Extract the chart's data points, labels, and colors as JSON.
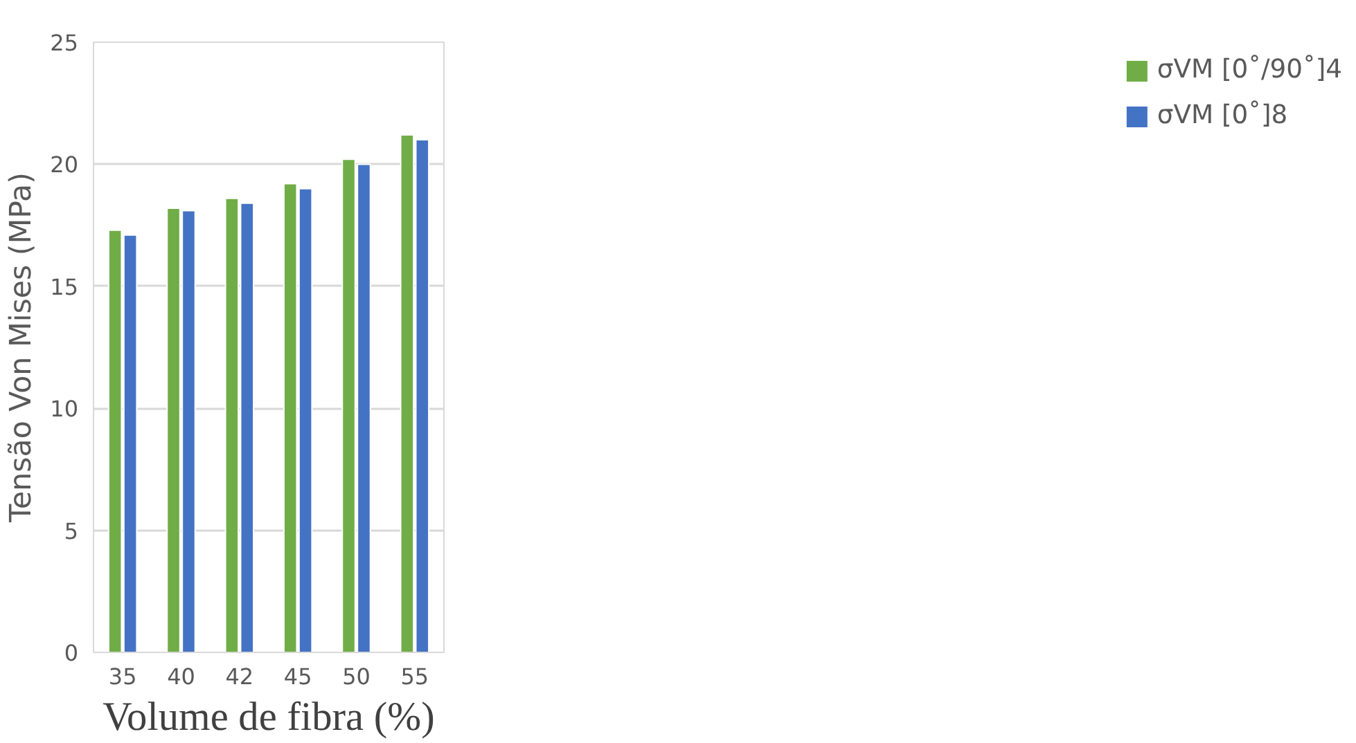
{
  "chart_data": {
    "type": "bar",
    "xlabel": "Volume de fibra (%)",
    "ylabel": "Tensão Von Mises (MPa)",
    "categories": [
      "35",
      "40",
      "42",
      "45",
      "50",
      "55"
    ],
    "series": [
      {
        "name": "σVM [0˚/90˚]4",
        "color": "#70ad47",
        "values": [
          17.3,
          18.2,
          18.6,
          19.2,
          20.2,
          21.2
        ]
      },
      {
        "name": "σVM [0˚]8",
        "color": "#4472c4",
        "values": [
          17.1,
          18.1,
          18.4,
          19.0,
          20.0,
          21.0
        ]
      }
    ],
    "ylim": [
      0,
      25
    ],
    "yticks": [
      0,
      5,
      10,
      15,
      20,
      25
    ],
    "grid": "y",
    "legend": "right"
  }
}
